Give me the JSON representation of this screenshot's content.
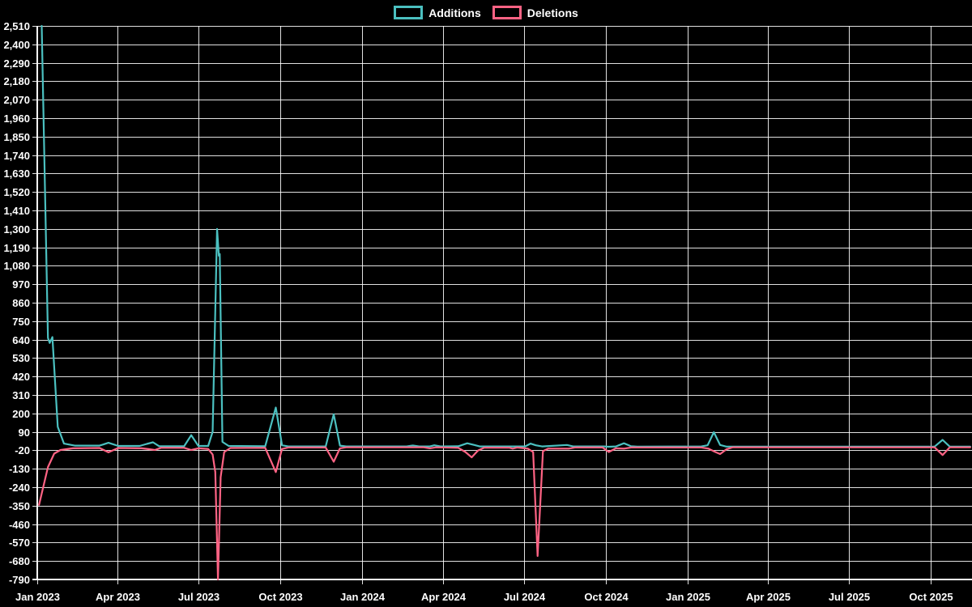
{
  "page": {
    "background": "#000000",
    "grid_color": "#ffffff"
  },
  "legend": {
    "items": [
      {
        "label": "Additions",
        "color": "#4bc0c0"
      },
      {
        "label": "Deletions",
        "color": "#ff6384"
      }
    ]
  },
  "chart_data": {
    "type": "line",
    "title": "",
    "xlabel": "",
    "ylabel": "",
    "grid": true,
    "legend_position": "top",
    "background": "#000000",
    "axis_color": "#ffffff",
    "x_type": "time",
    "x_domain": [
      "2023-01-01",
      "2025-11-16"
    ],
    "ylim": [
      -790,
      2510
    ],
    "y_tick_step": 110,
    "y_tick_labels": [
      "2,510",
      "2,400",
      "2,290",
      "2,180",
      "2,070",
      "1,960",
      "1,850",
      "1,740",
      "1,630",
      "1,520",
      "1,410",
      "1,300",
      "1,190",
      "1,080",
      "970",
      "860",
      "750",
      "640",
      "530",
      "420",
      "310",
      "200",
      "90",
      "-20",
      "-130",
      "-240",
      "-350",
      "-460",
      "-570",
      "-680",
      "-790"
    ],
    "x_ticks": [
      {
        "label": "Jan 2023",
        "date": "2023-01-01"
      },
      {
        "label": "Apr 2023",
        "date": "2023-04-01"
      },
      {
        "label": "Jul 2023",
        "date": "2023-07-01"
      },
      {
        "label": "Oct 2023",
        "date": "2023-10-01"
      },
      {
        "label": "Jan 2024",
        "date": "2024-01-01"
      },
      {
        "label": "Apr 2024",
        "date": "2024-04-01"
      },
      {
        "label": "Jul 2024",
        "date": "2024-07-01"
      },
      {
        "label": "Oct 2024",
        "date": "2024-10-01"
      },
      {
        "label": "Jan 2025",
        "date": "2025-01-01"
      },
      {
        "label": "Apr 2025",
        "date": "2025-04-01"
      },
      {
        "label": "Jul 2025",
        "date": "2025-07-01"
      },
      {
        "label": "Oct 2025",
        "date": "2025-10-01"
      }
    ],
    "series": [
      {
        "name": "Additions",
        "color": "#4bc0c0",
        "points": [
          [
            "2023-01-06",
            2510
          ],
          [
            "2023-01-13",
            650
          ],
          [
            "2023-01-15",
            620
          ],
          [
            "2023-01-18",
            655
          ],
          [
            "2023-01-24",
            120
          ],
          [
            "2023-01-31",
            20
          ],
          [
            "2023-02-12",
            8
          ],
          [
            "2023-03-12",
            8
          ],
          [
            "2023-03-22",
            25
          ],
          [
            "2023-04-02",
            6
          ],
          [
            "2023-04-26",
            6
          ],
          [
            "2023-05-04",
            18
          ],
          [
            "2023-05-11",
            28
          ],
          [
            "2023-05-18",
            4
          ],
          [
            "2023-06-15",
            4
          ],
          [
            "2023-06-23",
            70
          ],
          [
            "2023-07-01",
            6
          ],
          [
            "2023-07-12",
            6
          ],
          [
            "2023-07-17",
            90
          ],
          [
            "2023-07-22",
            1300
          ],
          [
            "2023-07-24",
            1140
          ],
          [
            "2023-07-25",
            1150
          ],
          [
            "2023-07-28",
            30
          ],
          [
            "2023-08-04",
            6
          ],
          [
            "2023-09-14",
            4
          ],
          [
            "2023-09-26",
            235
          ],
          [
            "2023-10-03",
            10
          ],
          [
            "2023-10-10",
            3
          ],
          [
            "2023-11-21",
            3
          ],
          [
            "2023-11-30",
            195
          ],
          [
            "2023-12-07",
            8
          ],
          [
            "2023-12-14",
            3
          ],
          [
            "2024-02-20",
            3
          ],
          [
            "2024-02-27",
            9
          ],
          [
            "2024-03-05",
            3
          ],
          [
            "2024-03-17",
            3
          ],
          [
            "2024-03-22",
            10
          ],
          [
            "2024-03-29",
            3
          ],
          [
            "2024-04-18",
            4
          ],
          [
            "2024-04-28",
            22
          ],
          [
            "2024-05-06",
            12
          ],
          [
            "2024-05-12",
            3
          ],
          [
            "2024-07-02",
            3
          ],
          [
            "2024-07-08",
            20
          ],
          [
            "2024-07-14",
            10
          ],
          [
            "2024-07-21",
            3
          ],
          [
            "2024-08-18",
            12
          ],
          [
            "2024-08-25",
            3
          ],
          [
            "2024-09-29",
            3
          ],
          [
            "2024-10-04",
            1
          ],
          [
            "2024-10-12",
            3
          ],
          [
            "2024-10-21",
            22
          ],
          [
            "2024-10-29",
            4
          ],
          [
            "2024-11-05",
            2
          ],
          [
            "2025-01-16",
            3
          ],
          [
            "2025-01-23",
            10
          ],
          [
            "2025-01-30",
            88
          ],
          [
            "2025-02-06",
            12
          ],
          [
            "2025-02-13",
            2
          ],
          [
            "2025-10-05",
            2
          ],
          [
            "2025-10-14",
            42
          ],
          [
            "2025-10-22",
            2
          ],
          [
            "2025-11-14",
            2
          ]
        ]
      },
      {
        "name": "Deletions",
        "color": "#ff6384",
        "points": [
          [
            "2023-01-03",
            -345
          ],
          [
            "2023-01-13",
            -120
          ],
          [
            "2023-01-20",
            -40
          ],
          [
            "2023-01-27",
            -18
          ],
          [
            "2023-02-10",
            -8
          ],
          [
            "2023-03-12",
            -6
          ],
          [
            "2023-03-22",
            -32
          ],
          [
            "2023-04-02",
            -6
          ],
          [
            "2023-04-28",
            -8
          ],
          [
            "2023-05-06",
            -13
          ],
          [
            "2023-05-13",
            -18
          ],
          [
            "2023-05-20",
            -5
          ],
          [
            "2023-06-15",
            -5
          ],
          [
            "2023-06-23",
            -18
          ],
          [
            "2023-07-01",
            -8
          ],
          [
            "2023-07-12",
            -12
          ],
          [
            "2023-07-17",
            -45
          ],
          [
            "2023-07-20",
            -150
          ],
          [
            "2023-07-23",
            -790
          ],
          [
            "2023-07-26",
            -180
          ],
          [
            "2023-07-30",
            -30
          ],
          [
            "2023-08-06",
            -6
          ],
          [
            "2023-09-14",
            -5
          ],
          [
            "2023-09-26",
            -150
          ],
          [
            "2023-10-03",
            -12
          ],
          [
            "2023-10-10",
            -3
          ],
          [
            "2023-11-21",
            -3
          ],
          [
            "2023-11-30",
            -88
          ],
          [
            "2023-12-07",
            -8
          ],
          [
            "2023-12-14",
            -2
          ],
          [
            "2024-03-10",
            -2
          ],
          [
            "2024-03-17",
            -8
          ],
          [
            "2024-03-24",
            -2
          ],
          [
            "2024-04-18",
            -5
          ],
          [
            "2024-04-26",
            -30
          ],
          [
            "2024-05-03",
            -62
          ],
          [
            "2024-05-10",
            -22
          ],
          [
            "2024-05-17",
            -4
          ],
          [
            "2024-06-14",
            -4
          ],
          [
            "2024-06-18",
            -10
          ],
          [
            "2024-06-23",
            -3
          ],
          [
            "2024-07-05",
            -10
          ],
          [
            "2024-07-11",
            -30
          ],
          [
            "2024-07-16",
            -650
          ],
          [
            "2024-07-22",
            -25
          ],
          [
            "2024-07-28",
            -10
          ],
          [
            "2024-08-20",
            -10
          ],
          [
            "2024-08-27",
            -3
          ],
          [
            "2024-09-27",
            -3
          ],
          [
            "2024-10-04",
            -30
          ],
          [
            "2024-10-12",
            -8
          ],
          [
            "2024-10-21",
            -10
          ],
          [
            "2024-10-29",
            -3
          ],
          [
            "2025-01-16",
            -3
          ],
          [
            "2025-01-24",
            -10
          ],
          [
            "2025-01-31",
            -28
          ],
          [
            "2025-02-06",
            -42
          ],
          [
            "2025-02-13",
            -14
          ],
          [
            "2025-02-20",
            -2
          ],
          [
            "2025-10-05",
            -2
          ],
          [
            "2025-10-14",
            -48
          ],
          [
            "2025-10-22",
            -2
          ],
          [
            "2025-11-14",
            -2
          ]
        ]
      }
    ]
  }
}
